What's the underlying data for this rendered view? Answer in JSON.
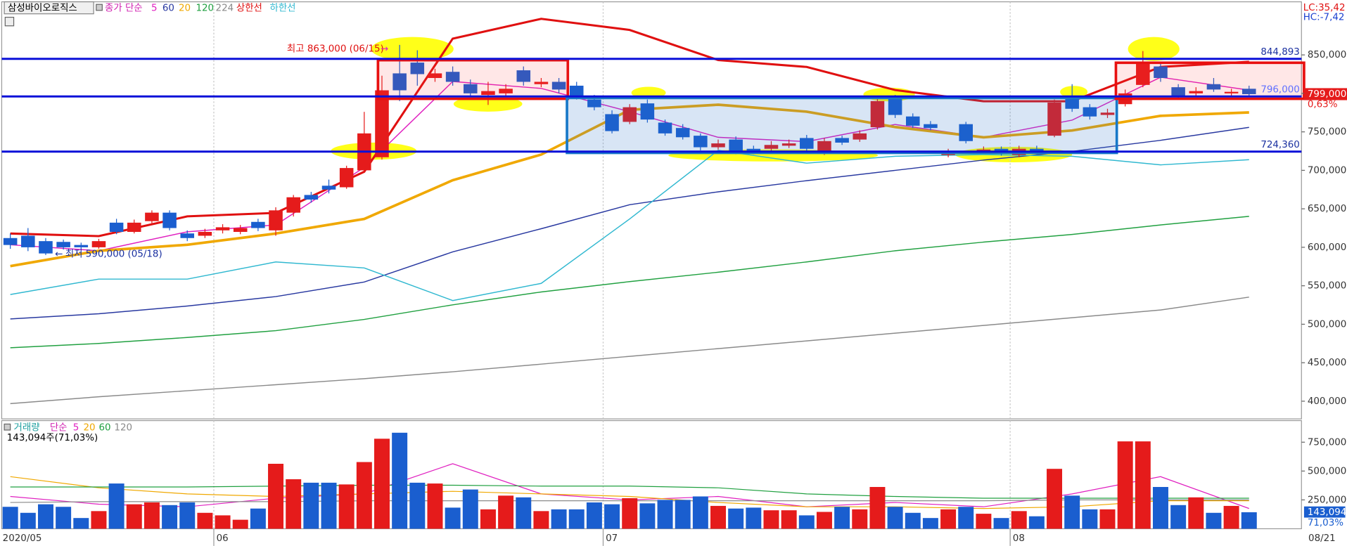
{
  "chart_data": {
    "type": "candlestick",
    "title": "삼성바이오로직스",
    "indicator_label": "종가 단순",
    "corner_labels": [
      "LC:35,42",
      "HC:-7,42"
    ],
    "categories": [
      "2020/05",
      null,
      null,
      null,
      null,
      null,
      null,
      null,
      null,
      null,
      null,
      null,
      "06",
      null,
      null,
      null,
      null,
      null,
      null,
      null,
      null,
      null,
      null,
      null,
      null,
      null,
      null,
      null,
      null,
      null,
      null,
      null,
      null,
      null,
      "07",
      null,
      null,
      null,
      null,
      null,
      null,
      null,
      null,
      null,
      null,
      null,
      null,
      null,
      null,
      null,
      null,
      null,
      null,
      null,
      null,
      null,
      null,
      "08",
      null,
      null,
      null,
      null,
      null,
      null,
      null,
      null,
      null,
      null,
      null,
      null,
      "08/21"
    ],
    "open": [
      612000,
      615000,
      608000,
      607000,
      603000,
      600000,
      632000,
      620000,
      634000,
      645000,
      618000,
      615000,
      622000,
      620000,
      633000,
      622000,
      645000,
      668000,
      680000,
      678000,
      700000,
      717000,
      826000,
      840000,
      820000,
      828000,
      812000,
      798000,
      800000,
      830000,
      812000,
      815000,
      810000,
      792000,
      773000,
      763000,
      787000,
      762000,
      755000,
      745000,
      730000,
      740000,
      728000,
      728000,
      732000,
      742000,
      723000,
      742000,
      740000,
      756000,
      793000,
      770000,
      760000,
      720000,
      760000,
      725000,
      728000,
      720000,
      728000,
      745000,
      795000,
      782000,
      772000,
      786000,
      811000,
      835000,
      808000,
      800000,
      812000,
      800000,
      806000
    ],
    "high": [
      618000,
      625000,
      612000,
      610000,
      606000,
      611000,
      637000,
      636000,
      648000,
      648000,
      622000,
      624000,
      630000,
      629000,
      637000,
      652000,
      668000,
      672000,
      688000,
      706000,
      776000,
      823000,
      863000,
      856000,
      832000,
      835000,
      818000,
      815000,
      812000,
      835000,
      820000,
      820000,
      815000,
      798000,
      778000,
      786000,
      792000,
      766000,
      760000,
      748000,
      740000,
      744000,
      732000,
      738000,
      740000,
      746000,
      742000,
      745000,
      752000,
      795000,
      798000,
      774000,
      764000,
      728000,
      763000,
      731000,
      731000,
      732000,
      732000,
      792000,
      812000,
      786000,
      780000,
      805000,
      855000,
      840000,
      812000,
      808000,
      820000,
      806000,
      810000
    ],
    "low": [
      598000,
      595000,
      590000,
      597000,
      597000,
      598000,
      617000,
      618000,
      630000,
      622000,
      608000,
      612000,
      618000,
      617000,
      621000,
      615000,
      640000,
      658000,
      670000,
      676000,
      698000,
      714000,
      790000,
      810000,
      815000,
      810000,
      795000,
      785000,
      795000,
      810000,
      808000,
      800000,
      792000,
      778000,
      748000,
      760000,
      762000,
      745000,
      740000,
      726000,
      727000,
      721000,
      721000,
      725000,
      729000,
      724000,
      720000,
      733000,
      737000,
      753000,
      768000,
      755000,
      752000,
      717000,
      735000,
      722000,
      719000,
      717000,
      721000,
      743000,
      776000,
      766000,
      768000,
      783000,
      808000,
      815000,
      792000,
      796000,
      802000,
      797000,
      795000
    ],
    "close": [
      603000,
      600000,
      592000,
      600000,
      600000,
      608000,
      620000,
      632000,
      645000,
      625000,
      612000,
      620000,
      626000,
      625000,
      625000,
      648000,
      665000,
      662000,
      675000,
      703000,
      748000,
      804000,
      804000,
      825000,
      826000,
      815000,
      800000,
      803000,
      806000,
      815000,
      815000,
      805000,
      796000,
      782000,
      751000,
      782000,
      766000,
      748000,
      743000,
      730000,
      735000,
      725000,
      725000,
      733000,
      735000,
      728000,
      738000,
      736000,
      748000,
      790000,
      772000,
      758000,
      755000,
      725000,
      738000,
      727000,
      722000,
      728000,
      725000,
      788000,
      780000,
      770000,
      775000,
      800000,
      839000,
      820000,
      795000,
      803000,
      805000,
      802000,
      799000
    ],
    "up_color": "#e51b1b",
    "down_color": "#1a5ecf",
    "ylim": [
      377000,
      919000
    ],
    "yticks": [
      {
        "value": 400000,
        "label": "400,000"
      },
      {
        "value": 450000,
        "label": "450,000"
      },
      {
        "value": 500000,
        "label": "500,000"
      },
      {
        "value": 550000,
        "label": "550,000"
      },
      {
        "value": 600000,
        "label": "600,000"
      },
      {
        "value": 650000,
        "label": "650,000"
      },
      {
        "value": 700000,
        "label": "700,000"
      },
      {
        "value": 750000,
        "label": "750,000"
      },
      {
        "value": 800000,
        "label": "800,000"
      },
      {
        "value": 850000,
        "label": "850,000"
      }
    ],
    "grid": false,
    "series": [
      {
        "name": "5",
        "color": "#e020c0",
        "x": [
          0,
          5,
          10,
          15,
          20,
          25,
          30,
          35,
          40,
          45,
          50,
          55,
          60,
          65,
          70
        ],
        "values": [
          603300,
          595500,
          620100,
          629000,
          703800,
          815400,
          806500,
          776300,
          742900,
          737300,
          759600,
          742900,
          765200,
          821000,
          804200
        ]
      },
      {
        "name": "60",
        "color": "#2838a0",
        "x": [
          0,
          5,
          10,
          15,
          20,
          25,
          30,
          35,
          40,
          45,
          50,
          55,
          60,
          65,
          70
        ],
        "values": [
          506900,
          513600,
          523700,
          535900,
          554900,
          594000,
          624100,
          655400,
          672100,
          686600,
          700000,
          713400,
          724600,
          739000,
          755800
        ]
      },
      {
        "name": "20",
        "color": "#f0a800",
        "x": [
          0,
          5,
          10,
          15,
          20,
          25,
          30,
          35,
          40,
          45,
          50,
          55,
          60,
          65,
          70
        ],
        "values": [
          575500,
          595500,
          603300,
          617900,
          636800,
          687100,
          720500,
          778600,
          785300,
          776300,
          756300,
          742900,
          751800,
          770800,
          775200
        ]
      },
      {
        "name": "120",
        "color": "#20a040",
        "x": [
          0,
          5,
          10,
          15,
          20,
          25,
          30,
          35,
          40,
          45,
          50,
          55,
          60,
          65,
          70
        ],
        "values": [
          469400,
          475000,
          482800,
          491700,
          506200,
          525200,
          541900,
          555400,
          567600,
          581000,
          595500,
          606700,
          616700,
          629000,
          640200
        ]
      },
      {
        "name": "224",
        "color": "#8a8a8a",
        "x": [
          0,
          5,
          10,
          15,
          20,
          25,
          30,
          35,
          40,
          45,
          50,
          55,
          60,
          65,
          70
        ],
        "values": [
          396900,
          405800,
          413600,
          421400,
          429300,
          438200,
          448200,
          458300,
          468300,
          478400,
          488400,
          498400,
          508500,
          518500,
          535300
        ]
      },
      {
        "name": "상한선",
        "color": "#e01010",
        "x": [
          0,
          5,
          10,
          15,
          20,
          25,
          30,
          35,
          40,
          45,
          50,
          55,
          60,
          65,
          70
        ],
        "values": [
          617900,
          614500,
          640200,
          644600,
          698200,
          871200,
          896900,
          882400,
          843300,
          834400,
          804300,
          789800,
          789800,
          834400,
          841100
        ]
      },
      {
        "name": "하한선",
        "color": "#30b8d0",
        "x": [
          0,
          5,
          10,
          15,
          20,
          25,
          30,
          35,
          40,
          45,
          50,
          55,
          60,
          65,
          70
        ],
        "values": [
          538600,
          558700,
          558700,
          581000,
          573200,
          530800,
          553100,
          636800,
          726100,
          709300,
          718300,
          720500,
          718300,
          707100,
          713800
        ]
      }
    ],
    "levels": [
      {
        "value": 844893,
        "label": "844,893"
      },
      {
        "value": 796000,
        "label": "796,000"
      },
      {
        "value": 724360,
        "label": "724,360"
      }
    ],
    "current": {
      "value": 799000,
      "label": "799,000",
      "change": "0,63%"
    },
    "annotations": [
      "최고 863,000 (06/15)",
      "최저 590,000 (05/18)"
    ],
    "volume": {
      "label": "거래량",
      "indicator_label": "단순",
      "readout": "143,094주(71,03%)",
      "last_label": "143,094",
      "last_ratio": "71,03%",
      "values": [
        190000,
        138000,
        212000,
        190000,
        93000,
        153000,
        392000,
        212000,
        228000,
        205000,
        228000,
        138000,
        116000,
        78000,
        175000,
        563000,
        429000,
        399000,
        399000,
        384000,
        578000,
        780000,
        832000,
        399000,
        392000,
        183000,
        340000,
        168000,
        287000,
        272000,
        153000,
        168000,
        168000,
        228000,
        212000,
        265000,
        220000,
        250000,
        250000,
        280000,
        198000,
        175000,
        183000,
        160000,
        160000,
        116000,
        146000,
        190000,
        168000,
        362000,
        190000,
        138000,
        93000,
        168000,
        190000,
        130000,
        93000,
        153000,
        108000,
        519000,
        287000,
        168000,
        168000,
        757000,
        757000,
        362000,
        205000,
        272000,
        138000,
        198000,
        143094
      ],
      "ylim": [
        0,
        937000
      ],
      "yticks": [
        {
          "value": 250000,
          "label": "250,000"
        },
        {
          "value": 500000,
          "label": "500,000"
        },
        {
          "value": 750000,
          "label": "750,000"
        }
      ],
      "series": [
        {
          "name": "5",
          "color": "#e020c0",
          "x": [
            0,
            5,
            10,
            15,
            20,
            25,
            30,
            35,
            40,
            45,
            50,
            55,
            60,
            65,
            70
          ],
          "values": [
            279900,
            212700,
            190300,
            264900,
            302200,
            563400,
            302200,
            250000,
            279900,
            190300,
            227600,
            190300,
            302200,
            451500,
            175400
          ]
        },
        {
          "name": "20",
          "color": "#f0a800",
          "x": [
            0,
            5,
            10,
            15,
            20,
            25,
            30,
            35,
            40,
            45,
            50,
            55,
            60,
            65,
            70
          ],
          "values": [
            451500,
            354500,
            302200,
            279900,
            302200,
            324600,
            302200,
            279900,
            227600,
            190300,
            190300,
            175400,
            190300,
            242500,
            242500
          ]
        },
        {
          "name": "60",
          "color": "#20a040",
          "x": [
            0,
            5,
            10,
            15,
            20,
            25,
            30,
            35,
            40,
            45,
            50,
            55,
            60,
            65,
            70
          ],
          "values": [
            361900,
            361900,
            361900,
            369400,
            376900,
            376900,
            369400,
            369400,
            354500,
            302200,
            279900,
            264900,
            264900,
            264900,
            264900
          ]
        },
        {
          "name": "120",
          "color": "#8a8a8a",
          "x": [
            0,
            5,
            10,
            15,
            20,
            25,
            30,
            35,
            40,
            45,
            50,
            55,
            60,
            65,
            70
          ],
          "values": [
            227600,
            235000,
            235000,
            235000,
            242500,
            242500,
            242500,
            242500,
            242500,
            242500,
            242500,
            242500,
            250000,
            250000,
            250000
          ]
        }
      ]
    }
  }
}
